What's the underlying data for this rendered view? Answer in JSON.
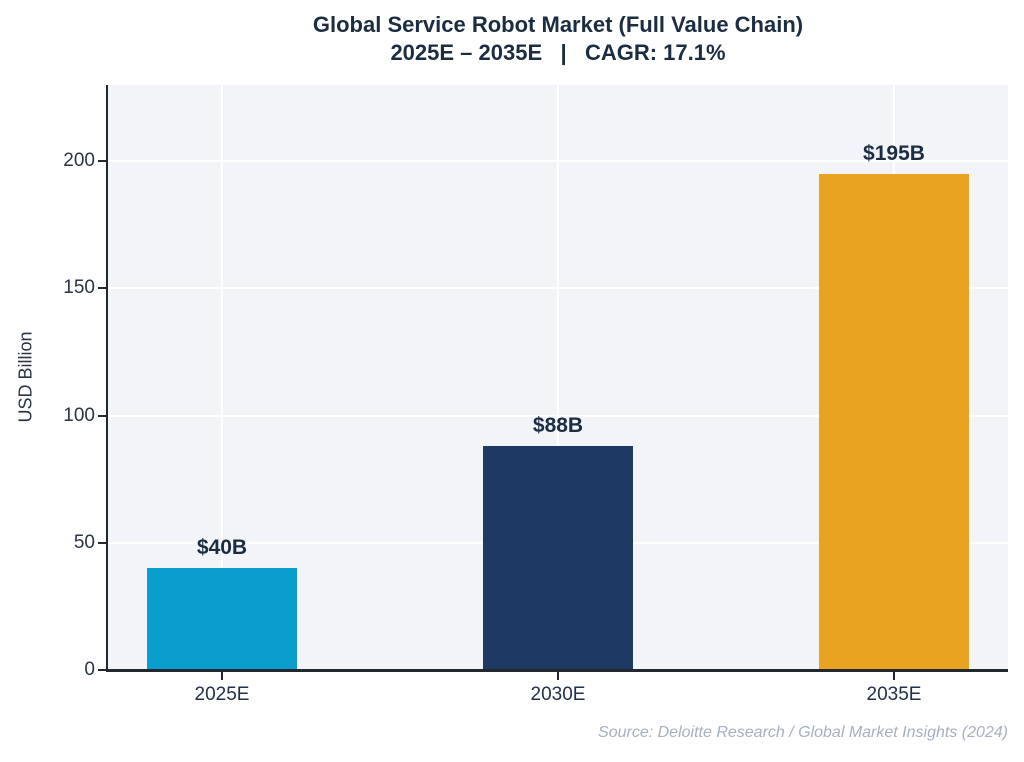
{
  "chart_data": {
    "type": "bar",
    "title_line1": "Global Service Robot Market (Full Value Chain)",
    "title_line2": "2025E – 2035E   |   CAGR: 17.1%",
    "ylabel": "USD Billion",
    "categories": [
      "2025E",
      "2030E",
      "2035E"
    ],
    "values": [
      40,
      88,
      195
    ],
    "value_labels": [
      "$40B",
      "$88B",
      "$195B"
    ],
    "bar_colors": [
      "#0a9ecf",
      "#1e3a64",
      "#e9a320"
    ],
    "yticks": [
      0,
      50,
      100,
      150,
      200
    ],
    "ylim": [
      0,
      230
    ],
    "grid": true,
    "legend": "none",
    "plot_background": "#f2f4f7",
    "gridline_color": "#ffffff",
    "source": "Source: Deloitte Research / Global Market Insights (2024)"
  }
}
